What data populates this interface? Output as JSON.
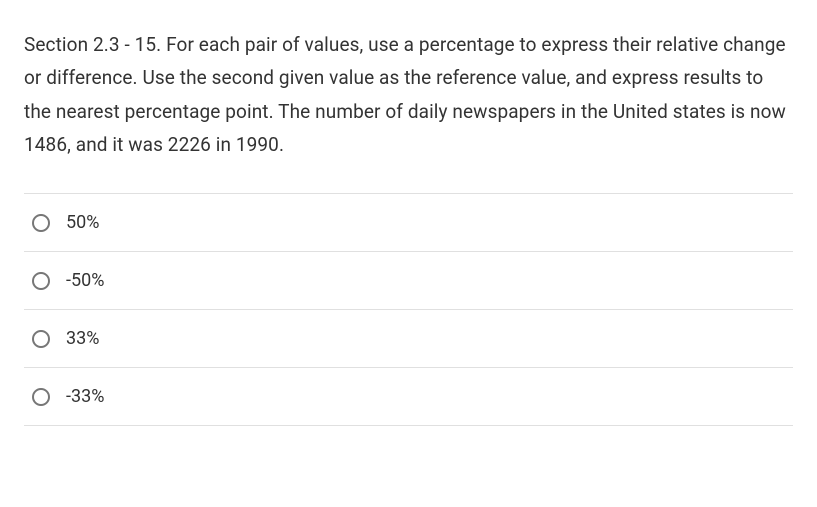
{
  "question": {
    "text": "Section 2.3 - 15. For each pair of values, use a percentage to express their relative change or difference. Use the second given value as the reference value, and express results to the nearest percentage point. The number of daily newspapers in the United states is now 1486, and it was 2226 in 1990."
  },
  "options": [
    {
      "label": "50%"
    },
    {
      "label": "-50%"
    },
    {
      "label": "33%"
    },
    {
      "label": "-33%"
    }
  ],
  "styling": {
    "font_size_question": 19,
    "font_size_option": 18,
    "line_height": 1.75,
    "text_color": "#333333",
    "border_color": "#e0e0e0",
    "radio_border_color": "#777777",
    "background_color": "#ffffff"
  }
}
